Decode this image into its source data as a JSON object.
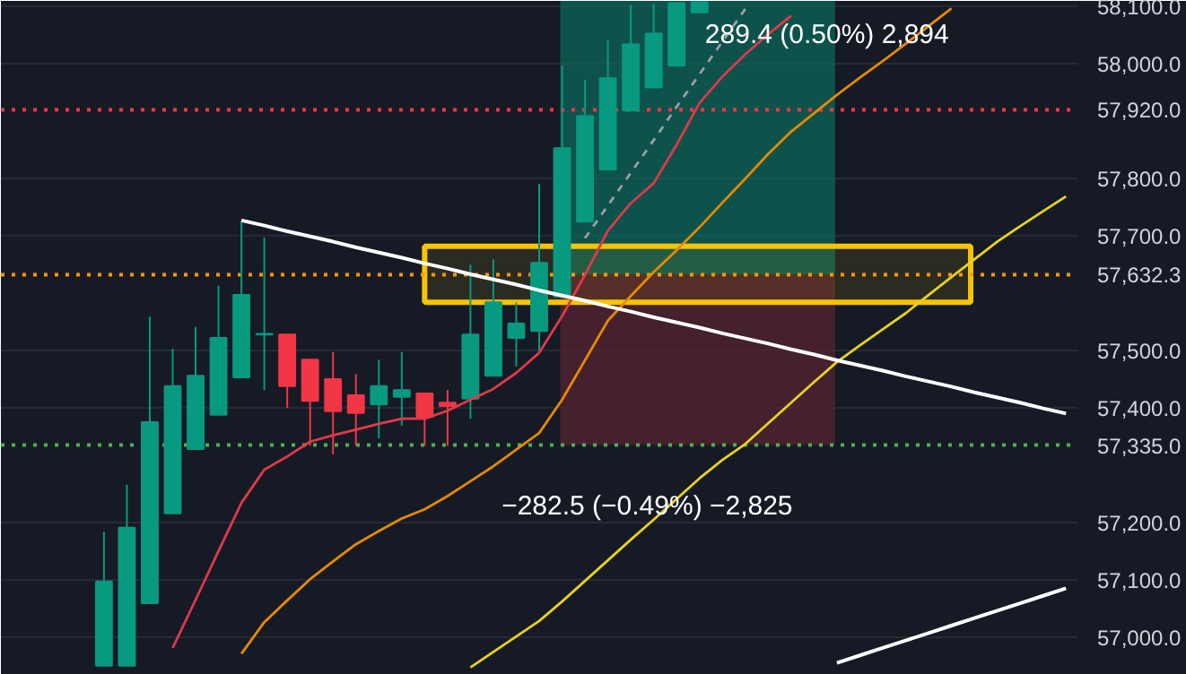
{
  "chart_data": {
    "type": "candlestick",
    "categories": [
      null,
      null,
      null,
      null,
      null,
      null,
      null,
      null,
      null,
      null,
      null,
      null,
      null,
      null,
      null,
      null,
      null,
      null,
      null,
      null,
      null,
      null,
      null,
      null,
      null,
      null,
      null,
      null,
      null,
      null,
      null,
      null,
      null,
      null,
      null,
      null,
      null,
      null,
      null,
      null,
      null,
      null,
      null,
      null,
      null,
      null,
      null
    ],
    "ohlc": [
      null,
      null,
      null,
      null,
      [
        56950,
        57184,
        56950,
        57097
      ],
      [
        56950,
        57266,
        56950,
        57191
      ],
      [
        57059,
        57559,
        57059,
        57375
      ],
      [
        57216,
        57503,
        57216,
        57438
      ],
      [
        57328,
        57541,
        57328,
        57456
      ],
      [
        57388,
        57613,
        57388,
        57522
      ],
      [
        57453,
        57725,
        57453,
        57597
      ],
      [
        57528,
        57697,
        57431,
        57529
      ],
      [
        57528,
        57528,
        57400,
        57438
      ],
      [
        57484,
        57484,
        57334,
        57412
      ],
      [
        57450,
        57497,
        57319,
        57394
      ],
      [
        57422,
        57459,
        57334,
        57391
      ],
      [
        57406,
        57484,
        57347,
        57438
      ],
      [
        57419,
        57497,
        57369,
        57431
      ],
      [
        57425,
        57425,
        57334,
        57384
      ],
      [
        57409,
        57431,
        57334,
        57403
      ],
      [
        57416,
        57650,
        57381,
        57528
      ],
      [
        57456,
        57659,
        57456,
        57584
      ],
      [
        57522,
        57584,
        57472,
        57547
      ],
      [
        57534,
        57791,
        57497,
        57653
      ],
      [
        57594,
        57997,
        57594,
        57853
      ],
      [
        57725,
        57972,
        57725,
        57909
      ],
      [
        57816,
        58041,
        57816,
        57975
      ],
      [
        57919,
        58103,
        57919,
        58034
      ],
      [
        57959,
        58105,
        57959,
        58053
      ],
      [
        57997,
        58108,
        57997,
        58106
      ],
      [
        58090,
        58109,
        58090,
        58108
      ],
      null,
      null,
      null,
      null,
      null,
      null,
      null,
      null,
      null,
      null,
      null,
      null,
      null,
      null,
      null,
      null
    ],
    "colors": [
      null,
      null,
      null,
      null,
      "#089981",
      "#089981",
      "#089981",
      "#089981",
      "#089981",
      "#089981",
      "#089981",
      "#089981",
      "#f23645",
      "#f23645",
      "#f23645",
      "#f23645",
      "#089981",
      "#089981",
      "#f23645",
      "#f23645",
      "#089981",
      "#089981",
      "#089981",
      "#089981",
      "#089981",
      "#089981",
      "#089981",
      "#089981",
      "#089981",
      "#089981",
      "#089981",
      null,
      null,
      null,
      null,
      null,
      null,
      null,
      null,
      null,
      null,
      null,
      null,
      null,
      null,
      null,
      null
    ],
    "series": [
      {
        "type": "line",
        "color": "#e0394a",
        "values": [
          null,
          null,
          null,
          null,
          null,
          null,
          null,
          56981,
          57065,
          57150,
          57234,
          57292,
          57315,
          57341,
          57352,
          57362,
          57372,
          57381,
          57381,
          57395,
          57414,
          57433,
          57461,
          57496,
          57560,
          57632,
          57709,
          57757,
          57792,
          57859,
          57932,
          57978,
          58017,
          58052,
          58084,
          null,
          null,
          null,
          null,
          null,
          null,
          null,
          null,
          null,
          null,
          null,
          null
        ]
      },
      {
        "type": "line",
        "color": "#e68a00",
        "values": [
          null,
          null,
          null,
          null,
          null,
          null,
          null,
          null,
          null,
          null,
          56971,
          57026,
          57064,
          57101,
          57132,
          57162,
          57185,
          57207,
          57223,
          57246,
          57272,
          57298,
          57327,
          57356,
          57414,
          57483,
          57552,
          57595,
          57637,
          57675,
          57715,
          57758,
          57800,
          57843,
          57882,
          57914,
          57946,
          57976,
          58005,
          58035,
          58066,
          58097,
          null,
          null,
          null,
          null,
          null
        ]
      },
      {
        "type": "line",
        "color": "#e8d21c",
        "values": [
          null,
          null,
          null,
          null,
          null,
          null,
          null,
          null,
          null,
          null,
          null,
          null,
          null,
          null,
          null,
          null,
          null,
          null,
          null,
          null,
          56947,
          56974,
          57001,
          57028,
          57062,
          57098,
          57134,
          57170,
          57205,
          57241,
          57277,
          57309,
          57337,
          57373,
          57409,
          57445,
          57480,
          57509,
          57537,
          57565,
          57597,
          57628,
          57659,
          57690,
          57717,
          57743,
          57769
        ]
      },
      {
        "type": "line",
        "color": "#ffffff",
        "values": [
          null,
          null,
          null,
          null,
          null,
          null,
          null,
          null,
          null,
          null,
          57727,
          57718,
          57708,
          57699,
          57690,
          57680,
          57671,
          57662,
          57652,
          57643,
          57633,
          57624,
          57615,
          57605,
          57596,
          57587,
          57577,
          57568,
          57558,
          57549,
          57540,
          57530,
          57521,
          57512,
          57502,
          57493,
          57483,
          57474,
          57465,
          57455,
          57446,
          57437,
          57427,
          57418,
          57409,
          57399,
          57390
        ]
      },
      {
        "type": "line",
        "color": "#ffffff",
        "values": [
          null,
          null,
          null,
          null,
          null,
          null,
          null,
          null,
          null,
          null,
          null,
          null,
          null,
          null,
          null,
          null,
          null,
          null,
          null,
          null,
          null,
          null,
          null,
          null,
          null,
          null,
          null,
          null,
          null,
          null,
          null,
          null,
          null,
          null,
          null,
          null,
          56955,
          56968,
          56981,
          56994,
          57007,
          57020,
          57033,
          57046,
          57059,
          57072,
          57085
        ]
      },
      {
        "type": "line",
        "color": "#9aa0a8",
        "line_style": "dashed",
        "values": [
          null,
          null,
          null,
          null,
          null,
          null,
          null,
          null,
          null,
          null,
          null,
          null,
          null,
          null,
          null,
          null,
          null,
          null,
          null,
          null,
          null,
          null,
          null,
          null,
          null,
          57696,
          57753,
          57810,
          57867,
          57925,
          57982,
          58039,
          58096,
          null,
          null,
          null,
          null,
          null,
          null,
          null,
          null,
          null,
          null,
          null,
          null,
          null,
          null
        ]
      }
    ],
    "ylim": [
      56934,
      58110
    ],
    "yticks": [
      {
        "value": 57000,
        "label": "57,000.0"
      },
      {
        "value": 57100,
        "label": "57,100.0"
      },
      {
        "value": 57200,
        "label": "57,200.0"
      },
      {
        "value": 57400,
        "label": "57,400.0"
      },
      {
        "value": 57500,
        "label": "57,500.0"
      },
      {
        "value": 57700,
        "label": "57,700.0"
      },
      {
        "value": 57800,
        "label": "57,800.0"
      },
      {
        "value": 58000,
        "label": "58,000.0"
      },
      {
        "value": 58100,
        "label": "58,100.0"
      }
    ],
    "tick_labels": "y",
    "grid": "y",
    "ref_lines": [
      {
        "axis": "y",
        "value": 57920,
        "label": "57,920.0",
        "color": "#f23645",
        "line_style": "dotted"
      },
      {
        "axis": "y",
        "value": 57632.3,
        "label": "57,632.3",
        "color": "#ff9800",
        "line_style": "dotted"
      },
      {
        "axis": "y",
        "value": 57335,
        "label": "57,335.0",
        "color": "#4caf50",
        "line_style": "dotted"
      }
    ],
    "bands": [
      {
        "axis": "y",
        "from": 57632.3,
        "to": 58110,
        "color": "#0b6b5c"
      },
      {
        "axis": "y",
        "from": 57335,
        "to": 57632.3,
        "color": "#5a2430"
      },
      {
        "axis": "y",
        "from": 57584,
        "to": 57682,
        "color": "#f5c400"
      }
    ],
    "annotations": [
      "289.4 (0.50%) 2,894",
      "−282.5 (−0.49%) −2,825"
    ]
  }
}
